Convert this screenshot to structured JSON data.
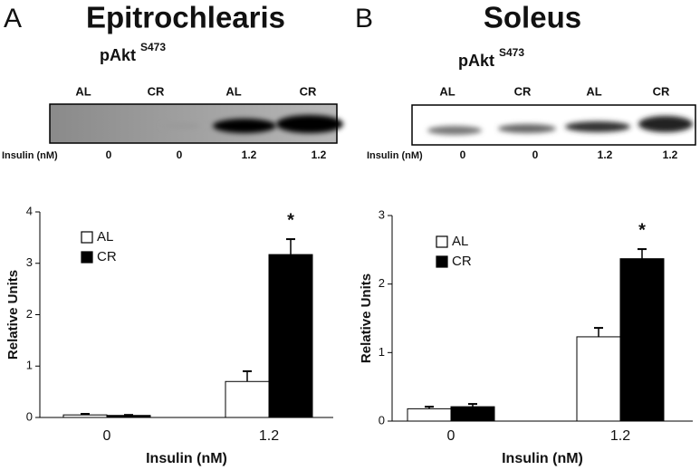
{
  "chart_data": [
    {
      "type": "bar",
      "panel_label": "A",
      "title": "Epitrochlearis",
      "blot": {
        "protein": "pAkt",
        "site": "S473",
        "lanes": [
          "AL",
          "CR",
          "AL",
          "CR"
        ],
        "insulin_label": "Insulin (nM)",
        "insulin": [
          "0",
          "0",
          "1.2",
          "1.2"
        ]
      },
      "categories": [
        "0",
        "1.2"
      ],
      "xlabel": "Insulin (nM)",
      "ylabel": "Relative Units",
      "ylim": [
        0,
        4
      ],
      "yticks": [
        0,
        1,
        2,
        3,
        4
      ],
      "series": [
        {
          "name": "AL",
          "color": "#ffffff",
          "values": [
            0.05,
            0.7
          ],
          "errors": [
            0.02,
            0.2
          ]
        },
        {
          "name": "CR",
          "color": "#000000",
          "values": [
            0.04,
            3.17
          ],
          "errors": [
            0.01,
            0.3
          ]
        }
      ],
      "annotations": [
        "*"
      ]
    },
    {
      "type": "bar",
      "panel_label": "B",
      "title": "Soleus",
      "blot": {
        "protein": "pAkt",
        "site": "S473",
        "lanes": [
          "AL",
          "CR",
          "AL",
          "CR"
        ],
        "insulin_label": "Insulin (nM)",
        "insulin": [
          "0",
          "0",
          "1.2",
          "1.2"
        ]
      },
      "categories": [
        "0",
        "1.2"
      ],
      "xlabel": "Insulin (nM)",
      "ylabel": "Relative Units",
      "ylim": [
        0,
        3
      ],
      "yticks": [
        0,
        1,
        2,
        3
      ],
      "series": [
        {
          "name": "AL",
          "color": "#ffffff",
          "values": [
            0.18,
            1.23
          ],
          "errors": [
            0.03,
            0.13
          ]
        },
        {
          "name": "CR",
          "color": "#000000",
          "values": [
            0.21,
            2.37
          ],
          "errors": [
            0.04,
            0.14
          ]
        }
      ],
      "annotations": [
        "*"
      ]
    }
  ]
}
